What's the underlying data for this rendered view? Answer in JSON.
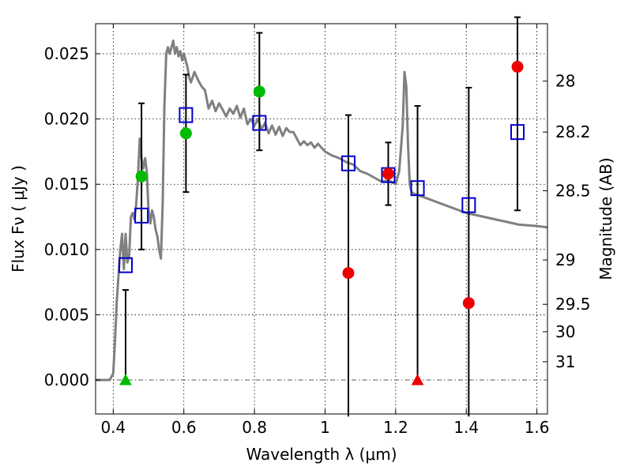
{
  "chart_data": {
    "type": "scatter",
    "xlabel": "Wavelength  λ (μm)",
    "ylabel": "Flux  Fν  ( μJy )",
    "ylabel_right": "Magnitude (AB)",
    "xlim": [
      0.35,
      1.63
    ],
    "ylim": [
      -0.0026,
      0.0273
    ],
    "grid": true,
    "x_ticks": [
      {
        "value": 0.4,
        "label": "0.4"
      },
      {
        "value": 0.6,
        "label": "0.6"
      },
      {
        "value": 0.8,
        "label": "0.8"
      },
      {
        "value": 1.0,
        "label": "1"
      },
      {
        "value": 1.2,
        "label": "1.2"
      },
      {
        "value": 1.4,
        "label": "1.4"
      },
      {
        "value": 1.6,
        "label": "1.6"
      }
    ],
    "y_ticks": [
      {
        "value": 0.0,
        "label": "0.000"
      },
      {
        "value": 0.005,
        "label": "0.005"
      },
      {
        "value": 0.01,
        "label": "0.010"
      },
      {
        "value": 0.015,
        "label": "0.015"
      },
      {
        "value": 0.02,
        "label": "0.020"
      },
      {
        "value": 0.025,
        "label": "0.025"
      }
    ],
    "mag_ticks": [
      {
        "flux": 0.0229,
        "label": "28"
      },
      {
        "flux": 0.019,
        "label": "28.2"
      },
      {
        "flux": 0.0145,
        "label": "28.5"
      },
      {
        "flux": 0.0092,
        "label": "29"
      },
      {
        "flux": 0.0058,
        "label": "29.5"
      },
      {
        "flux": 0.0037,
        "label": "30"
      },
      {
        "flux": 0.0014,
        "label": "31"
      }
    ],
    "series": [
      {
        "name": "model_sed",
        "kind": "line",
        "color": "#808080",
        "x": [
          0.35,
          0.39,
          0.4,
          0.405,
          0.41,
          0.415,
          0.42,
          0.425,
          0.43,
          0.435,
          0.44,
          0.445,
          0.45,
          0.455,
          0.46,
          0.465,
          0.47,
          0.475,
          0.48,
          0.485,
          0.49,
          0.495,
          0.5,
          0.505,
          0.51,
          0.515,
          0.52,
          0.525,
          0.53,
          0.535,
          0.54,
          0.545,
          0.55,
          0.555,
          0.56,
          0.565,
          0.57,
          0.575,
          0.58,
          0.585,
          0.59,
          0.595,
          0.6,
          0.605,
          0.61,
          0.615,
          0.62,
          0.625,
          0.63,
          0.64,
          0.65,
          0.66,
          0.67,
          0.68,
          0.69,
          0.7,
          0.71,
          0.72,
          0.73,
          0.74,
          0.75,
          0.76,
          0.77,
          0.78,
          0.79,
          0.8,
          0.81,
          0.82,
          0.83,
          0.84,
          0.85,
          0.86,
          0.87,
          0.88,
          0.89,
          0.9,
          0.91,
          0.92,
          0.93,
          0.94,
          0.95,
          0.96,
          0.97,
          0.98,
          1.0,
          1.02,
          1.04,
          1.06,
          1.08,
          1.1,
          1.12,
          1.14,
          1.16,
          1.18,
          1.2,
          1.21,
          1.22,
          1.225,
          1.23,
          1.235,
          1.24,
          1.245,
          1.25,
          1.26,
          1.28,
          1.3,
          1.35,
          1.4,
          1.45,
          1.5,
          1.55,
          1.6,
          1.63
        ],
        "y": [
          0.0,
          0.0,
          0.0005,
          0.003,
          0.006,
          0.008,
          0.01,
          0.0112,
          0.0085,
          0.0112,
          0.009,
          0.0095,
          0.0125,
          0.0128,
          0.0123,
          0.0135,
          0.0155,
          0.0185,
          0.017,
          0.0162,
          0.017,
          0.016,
          0.013,
          0.012,
          0.013,
          0.0125,
          0.0115,
          0.011,
          0.01,
          0.0093,
          0.0135,
          0.021,
          0.025,
          0.0255,
          0.025,
          0.0255,
          0.026,
          0.025,
          0.0255,
          0.0248,
          0.0252,
          0.0245,
          0.025,
          0.0245,
          0.024,
          0.0232,
          0.0228,
          0.0232,
          0.0236,
          0.023,
          0.0225,
          0.0222,
          0.0208,
          0.0214,
          0.0206,
          0.0212,
          0.0207,
          0.0202,
          0.0208,
          0.0204,
          0.021,
          0.0201,
          0.0208,
          0.0196,
          0.02,
          0.0195,
          0.02,
          0.0192,
          0.0197,
          0.0189,
          0.0195,
          0.0188,
          0.0194,
          0.0187,
          0.0193,
          0.019,
          0.019,
          0.0185,
          0.018,
          0.0183,
          0.018,
          0.0182,
          0.0178,
          0.0181,
          0.0175,
          0.0172,
          0.017,
          0.0167,
          0.0165,
          0.016,
          0.0158,
          0.0155,
          0.0152,
          0.0153,
          0.015,
          0.016,
          0.0195,
          0.0236,
          0.0225,
          0.018,
          0.015,
          0.0144,
          0.0143,
          0.0142,
          0.014,
          0.0138,
          0.0133,
          0.0128,
          0.0125,
          0.0122,
          0.0119,
          0.0118,
          0.0117
        ]
      },
      {
        "name": "observed_blue_squares",
        "kind": "square",
        "color": "#0000cc",
        "points": [
          {
            "x": 0.435,
            "y": 0.0088
          },
          {
            "x": 0.48,
            "y": 0.0126
          },
          {
            "x": 0.606,
            "y": 0.0203
          },
          {
            "x": 0.814,
            "y": 0.0197
          },
          {
            "x": 1.066,
            "y": 0.0166
          },
          {
            "x": 1.179,
            "y": 0.0157
          },
          {
            "x": 1.262,
            "y": 0.0147
          },
          {
            "x": 1.407,
            "y": 0.0134
          },
          {
            "x": 1.545,
            "y": 0.019
          }
        ]
      },
      {
        "name": "flux_green",
        "kind": "circle",
        "color": "#00bb00",
        "points": [
          {
            "x": 0.48,
            "y": 0.0156,
            "err_low": 0.01,
            "err_high": 0.0212
          },
          {
            "x": 0.606,
            "y": 0.0189,
            "err_low": 0.0144,
            "err_high": 0.0234
          },
          {
            "x": 0.814,
            "y": 0.0221,
            "err_low": 0.0176,
            "err_high": 0.0266
          }
        ]
      },
      {
        "name": "flux_red",
        "kind": "circle",
        "color": "#ee0000",
        "points": [
          {
            "x": 1.066,
            "y": 0.0082,
            "err_low": -0.0028,
            "err_high": 0.0203
          },
          {
            "x": 1.179,
            "y": 0.0158,
            "err_low": 0.0134,
            "err_high": 0.0182
          },
          {
            "x": 1.407,
            "y": 0.0059,
            "err_low": -0.0028,
            "err_high": 0.0224
          },
          {
            "x": 1.545,
            "y": 0.024,
            "err_low": 0.013,
            "err_high": 0.0278
          }
        ]
      },
      {
        "name": "upper_limits",
        "kind": "triangle",
        "points": [
          {
            "x": 0.435,
            "y": 0.0,
            "err_low": 0.0,
            "err_high": 0.0069,
            "color": "#00bb00"
          },
          {
            "x": 1.262,
            "y": 0.0,
            "err_low": 0.0,
            "err_high": 0.021,
            "color": "#ee0000"
          }
        ]
      }
    ]
  }
}
